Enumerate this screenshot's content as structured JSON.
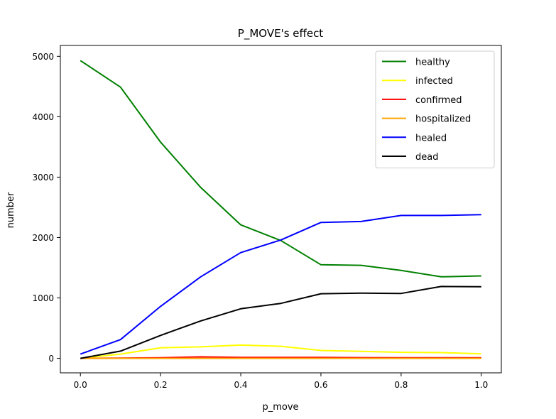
{
  "chart_data": {
    "type": "line",
    "title": "P_MOVE's effect",
    "xlabel": "p_move",
    "ylabel": "number",
    "xlim": [
      -0.05,
      1.05
    ],
    "ylim": [
      -240,
      5180
    ],
    "x_ticks": [
      0.0,
      0.2,
      0.4,
      0.6,
      0.8,
      1.0
    ],
    "x_tick_labels": [
      "0.0",
      "0.2",
      "0.4",
      "0.6",
      "0.8",
      "1.0"
    ],
    "y_ticks": [
      0,
      1000,
      2000,
      3000,
      4000,
      5000
    ],
    "y_tick_labels": [
      "0",
      "1000",
      "2000",
      "3000",
      "4000",
      "5000"
    ],
    "grid": false,
    "legend_position": "top-right",
    "x": [
      0.0,
      0.1,
      0.2,
      0.3,
      0.4,
      0.5,
      0.6,
      0.7,
      0.8,
      0.9,
      1.0
    ],
    "series": [
      {
        "name": "healthy",
        "color": "#008000",
        "values": [
          4930,
          4490,
          3580,
          2830,
          2210,
          1950,
          1550,
          1540,
          1455,
          1350,
          1365
        ]
      },
      {
        "name": "infected",
        "color": "#ffff00",
        "values": [
          0,
          70,
          175,
          190,
          220,
          200,
          130,
          115,
          100,
          95,
          75
        ]
      },
      {
        "name": "confirmed",
        "color": "#ff0000",
        "values": [
          0,
          5,
          10,
          25,
          15,
          15,
          15,
          12,
          10,
          10,
          10
        ]
      },
      {
        "name": "hospitalized",
        "color": "#ffa500",
        "values": [
          0,
          0,
          0,
          0,
          0,
          0,
          0,
          0,
          0,
          0,
          0
        ]
      },
      {
        "name": "healed",
        "color": "#0000ff",
        "values": [
          70,
          310,
          860,
          1350,
          1750,
          1960,
          2250,
          2265,
          2365,
          2365,
          2380
        ]
      },
      {
        "name": "dead",
        "color": "#000000",
        "values": [
          0,
          120,
          380,
          620,
          820,
          910,
          1070,
          1080,
          1075,
          1190,
          1185
        ]
      }
    ]
  }
}
